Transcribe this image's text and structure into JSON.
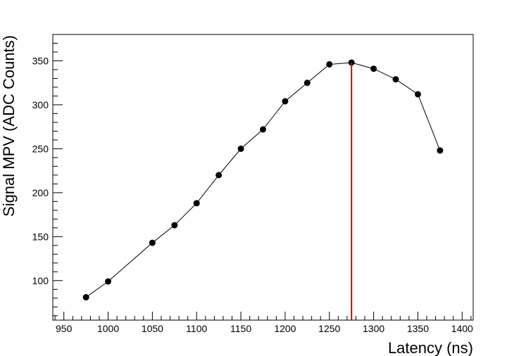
{
  "chart_data": {
    "type": "line",
    "title": "",
    "xlabel": "Latency (ns)",
    "ylabel": "Signal MPV (ADC Counts)",
    "xlim": [
      937.5,
      1412.5
    ],
    "ylim": [
      55,
      380
    ],
    "x_ticks": [
      950,
      1000,
      1050,
      1100,
      1150,
      1200,
      1250,
      1300,
      1350,
      1400
    ],
    "y_ticks": [
      100,
      150,
      200,
      250,
      300,
      350
    ],
    "grid": false,
    "legend": "none",
    "series": [
      {
        "x": [
          975,
          1000,
          1050,
          1075,
          1100,
          1125,
          1150,
          1175,
          1200,
          1225,
          1250,
          1275,
          1300,
          1325,
          1350,
          1375
        ],
        "y": [
          81,
          99,
          143,
          163,
          188,
          220,
          250,
          272,
          304,
          325,
          346,
          348,
          341,
          329,
          312,
          248
        ],
        "color": "#000000",
        "marker": "circle"
      }
    ],
    "vertical_line": {
      "x": 1275,
      "y_top": 348,
      "color": "#d40000"
    }
  }
}
